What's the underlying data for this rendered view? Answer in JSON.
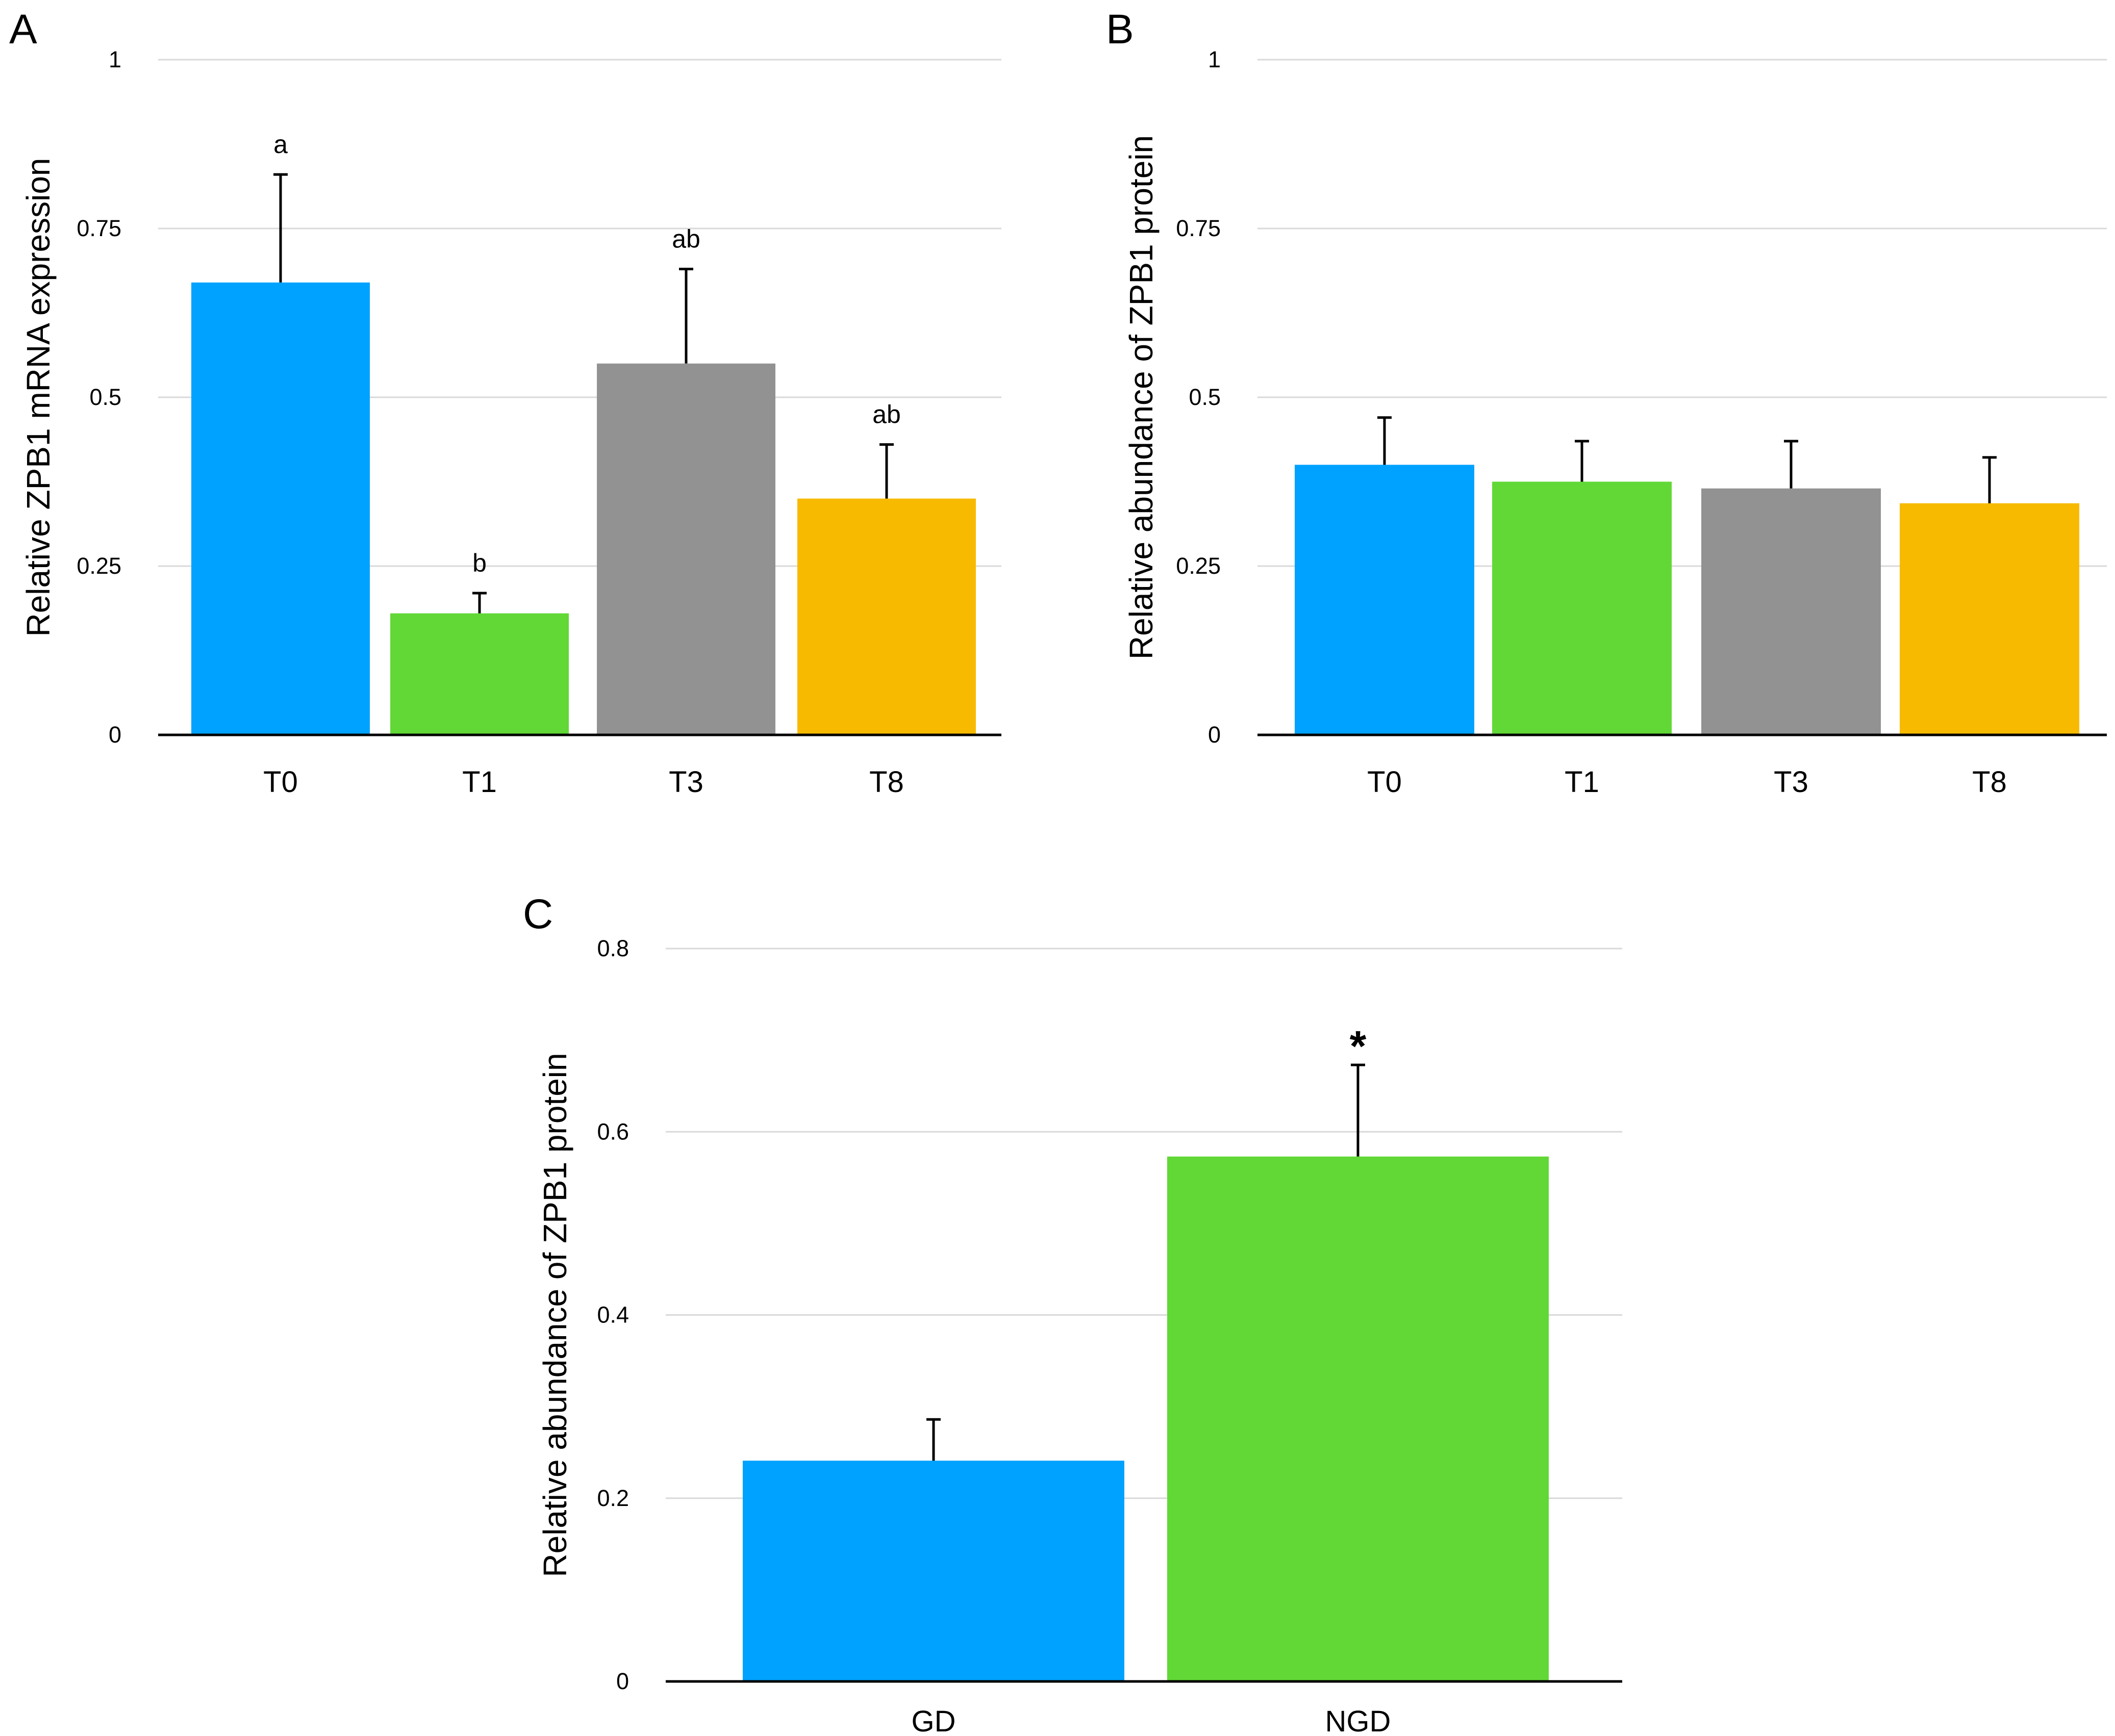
{
  "chart_data": [
    {
      "id": "A",
      "type": "bar",
      "panel_letter": "A",
      "title": "",
      "xlabel": "",
      "ylabel": "Relative ZPB1 mRNA expression",
      "ylim": [
        0,
        1
      ],
      "yticks": [
        0,
        0.25,
        0.5,
        0.75,
        1
      ],
      "ytick_labels": [
        "0",
        "0.25",
        "0.5",
        "0.75",
        "1"
      ],
      "grid": true,
      "legend": "none",
      "categories": [
        "T0",
        "T1",
        "T3",
        "T8"
      ],
      "values": [
        0.67,
        0.18,
        0.55,
        0.35
      ],
      "errors": [
        0.16,
        0.03,
        0.14,
        0.08
      ],
      "annotations": [
        "a",
        "b",
        "ab",
        "ab"
      ],
      "colors": [
        "#00a2ff",
        "#61d836",
        "#929292",
        "#f8ba00"
      ]
    },
    {
      "id": "B",
      "type": "bar",
      "panel_letter": "B",
      "title": "",
      "xlabel": "",
      "ylabel": "Relative abundance of ZPB1 protein",
      "ylim": [
        0,
        1
      ],
      "yticks": [
        0,
        0.25,
        0.5,
        0.75,
        1
      ],
      "ytick_labels": [
        "0",
        "0.25",
        "0.5",
        "0.75",
        "1"
      ],
      "grid": true,
      "legend": "none",
      "categories": [
        "T0",
        "T1",
        "T3",
        "T8"
      ],
      "values": [
        0.4,
        0.375,
        0.365,
        0.343
      ],
      "errors": [
        0.07,
        0.06,
        0.07,
        0.068
      ],
      "annotations": [
        "",
        "",
        "",
        ""
      ],
      "colors": [
        "#00a2ff",
        "#61d836",
        "#929292",
        "#f8ba00"
      ]
    },
    {
      "id": "C",
      "type": "bar",
      "panel_letter": "C",
      "title": "",
      "xlabel": "",
      "ylabel": "Relative abundance of ZPB1 protein",
      "ylim": [
        0,
        0.8
      ],
      "yticks": [
        0,
        0.2,
        0.4,
        0.6,
        0.8
      ],
      "ytick_labels": [
        "0",
        "0.2",
        "0.4",
        "0.6",
        "0.8"
      ],
      "grid": true,
      "legend": "none",
      "categories": [
        "GD",
        "NGD"
      ],
      "values": [
        0.241,
        0.573
      ],
      "errors": [
        0.045,
        0.1
      ],
      "annotations": [
        "",
        "*"
      ],
      "colors": [
        "#00a2ff",
        "#61d836"
      ]
    }
  ]
}
